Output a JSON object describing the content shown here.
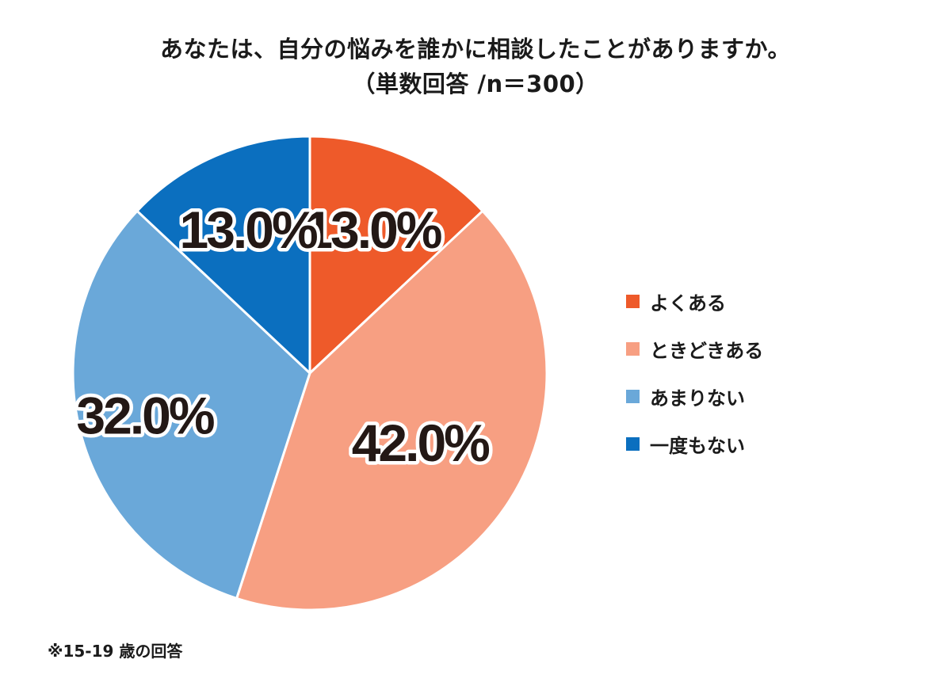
{
  "chart_data": {
    "type": "pie",
    "title": "あなたは、自分の悩みを誰かに相談したことがありますか。",
    "subtitle": "（単数回答 /n＝300）",
    "categories": [
      "よくある",
      "ときどきある",
      "あまりない",
      "一度もない"
    ],
    "values": [
      13.0,
      42.0,
      32.0,
      13.0
    ],
    "data_labels": [
      "13.0%",
      "42.0%",
      "32.0%",
      "13.0%"
    ],
    "colors": [
      "#EE5A2A",
      "#F79F82",
      "#6AA8D9",
      "#0B6FBF"
    ],
    "legend_position": "right",
    "start_angle": "12 o'clock",
    "direction": "clockwise"
  },
  "footnote": "※15-19 歳の回答"
}
